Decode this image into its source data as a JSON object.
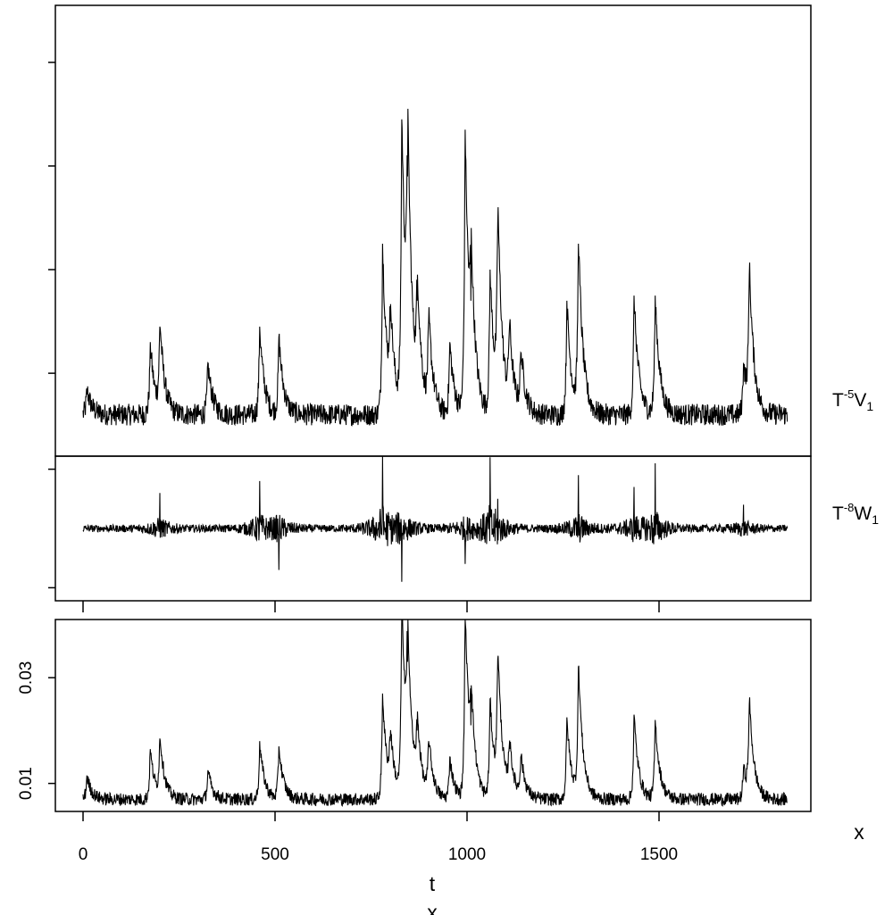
{
  "chart_data": {
    "type": "line",
    "xlabel": "t",
    "xlabel_secondary": "x",
    "x_range": [
      0,
      1835
    ],
    "x_ticks": [
      0,
      500,
      1000,
      1500
    ],
    "x_tick_labels": [
      "0",
      "500",
      "1000",
      "1500"
    ],
    "line_color": "#000000",
    "panels": [
      {
        "id": "top",
        "label_base": "T",
        "label_sup": "-5",
        "label_main": "V",
        "label_sub": "1",
        "y_ticks": [
          1,
          2,
          3,
          4
        ],
        "y_tick_labels": [
          "",
          "",
          "",
          ""
        ],
        "ylim": [
          0.2,
          4.55
        ],
        "baseline": 0.6,
        "spikes": [
          [
            10,
            0.25
          ],
          [
            175,
            0.7
          ],
          [
            200,
            0.85
          ],
          [
            325,
            0.5
          ],
          [
            460,
            0.85
          ],
          [
            510,
            0.75
          ],
          [
            780,
            1.65
          ],
          [
            800,
            0.9
          ],
          [
            830,
            2.85
          ],
          [
            845,
            2.3
          ],
          [
            870,
            1.1
          ],
          [
            900,
            0.9
          ],
          [
            955,
            0.7
          ],
          [
            995,
            2.75
          ],
          [
            1010,
            1.1
          ],
          [
            1060,
            1.4
          ],
          [
            1080,
            1.85
          ],
          [
            1110,
            0.8
          ],
          [
            1140,
            0.6
          ],
          [
            1260,
            1.1
          ],
          [
            1290,
            1.65
          ],
          [
            1435,
            1.15
          ],
          [
            1490,
            1.15
          ],
          [
            1720,
            0.5
          ],
          [
            1735,
            1.35
          ]
        ]
      },
      {
        "id": "middle",
        "label_base": "T",
        "label_sup": "-8",
        "label_main": "W",
        "label_sub": "1",
        "y_ticks": [
          -1,
          1
        ],
        "y_tick_labels": [
          "",
          ""
        ],
        "ylim": [
          -1.22,
          1.22
        ],
        "baseline": 0,
        "spikes": [
          [
            200,
            0.6
          ],
          [
            460,
            0.8
          ],
          [
            510,
            -0.7
          ],
          [
            780,
            1.4
          ],
          [
            830,
            -0.9
          ],
          [
            995,
            -0.6
          ],
          [
            1060,
            1.2
          ],
          [
            1080,
            0.5
          ],
          [
            1290,
            0.9
          ],
          [
            1435,
            0.7
          ],
          [
            1490,
            1.1
          ],
          [
            1720,
            0.4
          ]
        ]
      },
      {
        "id": "bottom",
        "label_base": "",
        "label_sup": "",
        "label_main": "",
        "label_sub": "",
        "y_ticks": [
          0.01,
          0.03
        ],
        "y_tick_labels": [
          "0.01",
          "0.03"
        ],
        "ylim": [
          0.0047,
          0.041
        ],
        "baseline": 0.007,
        "spikes": [
          [
            10,
            0.0045
          ],
          [
            175,
            0.0095
          ],
          [
            200,
            0.0115
          ],
          [
            325,
            0.0055
          ],
          [
            460,
            0.011
          ],
          [
            510,
            0.01
          ],
          [
            780,
            0.02
          ],
          [
            800,
            0.011
          ],
          [
            830,
            0.0375
          ],
          [
            845,
            0.026
          ],
          [
            870,
            0.013
          ],
          [
            900,
            0.011
          ],
          [
            955,
            0.008
          ],
          [
            995,
            0.0365
          ],
          [
            1010,
            0.014
          ],
          [
            1060,
            0.019
          ],
          [
            1080,
            0.0265
          ],
          [
            1110,
            0.01
          ],
          [
            1140,
            0.008
          ],
          [
            1260,
            0.0155
          ],
          [
            1290,
            0.025
          ],
          [
            1435,
            0.016
          ],
          [
            1490,
            0.015
          ],
          [
            1720,
            0.006
          ],
          [
            1735,
            0.018
          ]
        ]
      }
    ]
  }
}
